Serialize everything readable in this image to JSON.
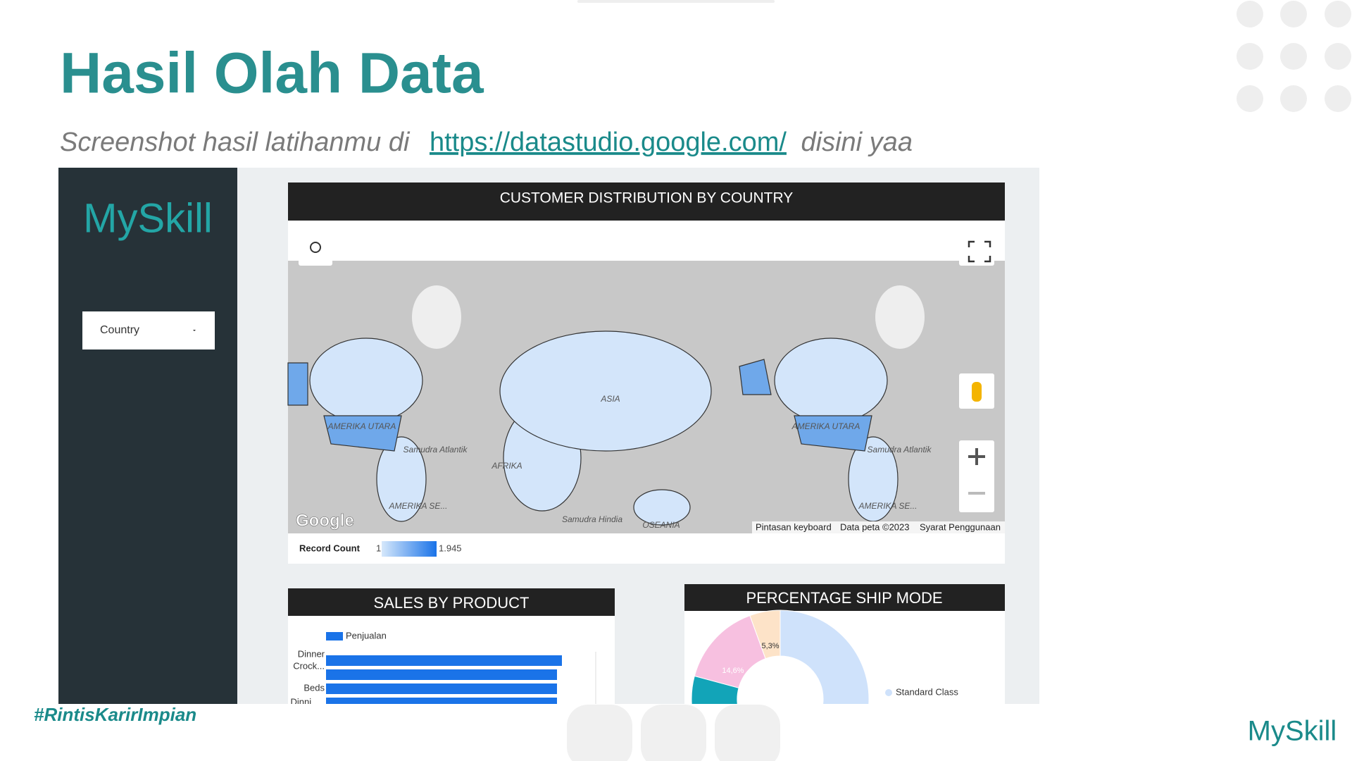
{
  "header": {
    "title": "Hasil Olah Data",
    "subtitle_before": "Screenshot hasil latihanmu di",
    "link": "https://datastudio.google.com/",
    "subtitle_after": "disini yaa"
  },
  "sidebar": {
    "logo": "MySkill",
    "filter": "Country"
  },
  "map_card": {
    "title": "CUSTOMER DISTRIBUTION BY COUNTRY",
    "labels": [
      "ASIA",
      "AMERIKA UTARA",
      "Samudra Atlantik",
      "AFRIKA",
      "OSEANIA",
      "Samudra Hindia",
      "AMERIKA SE...",
      "AMERIKA UTARA",
      "Samudra Atlantik",
      "AMERIKA SE..."
    ],
    "attribution": "Google",
    "footer": [
      "Pintasan keyboard",
      "Data peta ©2023",
      "Syarat Penggunaan"
    ],
    "legend": {
      "title": "Record Count",
      "min": "1",
      "max": "1.945"
    }
  },
  "sales_card": {
    "title": "SALES BY PRODUCT",
    "legend": "Penjualan",
    "categories": [
      "Dinner",
      "Crock...",
      "Beds",
      "Dinni..."
    ]
  },
  "ship_card": {
    "title": "PERCENTAGE SHIP MODE",
    "slice_labels": [
      "5,3%",
      "14,6%"
    ],
    "legend": [
      "Standard Class"
    ]
  },
  "footer": {
    "hashtag": "#RintisKarirImpian",
    "logo": "MySkill"
  }
}
